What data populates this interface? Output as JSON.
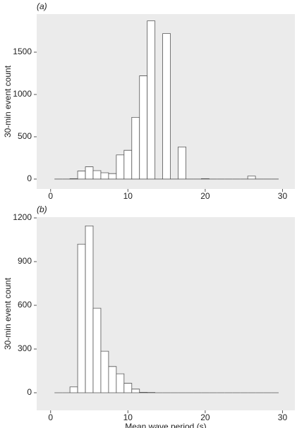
{
  "chart_data": [
    {
      "type": "histogram",
      "label": "(a)",
      "ylabel": "30-min event count",
      "bins": [
        0.5,
        1.5,
        2.5,
        3.5,
        4.5,
        5.5,
        6.5,
        7.5,
        8.5,
        9.5,
        10.5,
        11.5,
        12.5,
        13.5,
        14.5,
        15.5,
        16.5,
        17.5,
        18.5,
        19.5,
        20.5,
        21.5,
        22.5,
        23.5,
        24.5,
        25.5,
        26.5,
        27.5,
        28.5,
        29.5
      ],
      "counts": [
        0,
        0,
        5,
        95,
        145,
        100,
        75,
        65,
        285,
        340,
        730,
        1220,
        1870,
        0,
        1720,
        0,
        380,
        0,
        0,
        5,
        0,
        0,
        0,
        0,
        0,
        35,
        0,
        0,
        0
      ],
      "xlim": [
        -1.8,
        31.6
      ],
      "ylim": [
        -117,
        1950
      ],
      "xticks": [
        0,
        10,
        20,
        30
      ],
      "yticks": [
        0,
        500,
        1000,
        1500
      ],
      "color": "#ffffff",
      "edgecolor": "#555555",
      "background": "#ebebeb"
    },
    {
      "type": "histogram",
      "label": "(b)",
      "ylabel": "30-min event count",
      "xlabel": "Mean wave period (s)",
      "bins": [
        0.5,
        1.5,
        2.5,
        3.5,
        4.5,
        5.5,
        6.5,
        7.5,
        8.5,
        9.5,
        10.5,
        11.5,
        12.5,
        13.5,
        14.5,
        15.5,
        16.5,
        17.5,
        18.5,
        19.5,
        20.5,
        21.5,
        22.5,
        23.5,
        24.5,
        25.5,
        26.5,
        27.5,
        28.5,
        29.5
      ],
      "counts": [
        0,
        0,
        40,
        1020,
        1145,
        580,
        285,
        180,
        130,
        65,
        25,
        3,
        2,
        0,
        0,
        0,
        0,
        0,
        0,
        0,
        0,
        0,
        0,
        0,
        0,
        0,
        0,
        0,
        0
      ],
      "xlim": [
        -1.8,
        31.6
      ],
      "ylim": [
        -121,
        1205
      ],
      "xticks": [
        0,
        10,
        20,
        30
      ],
      "yticks": [
        0,
        300,
        600,
        900,
        1200
      ],
      "color": "#ffffff",
      "edgecolor": "#555555",
      "background": "#ebebeb"
    }
  ]
}
